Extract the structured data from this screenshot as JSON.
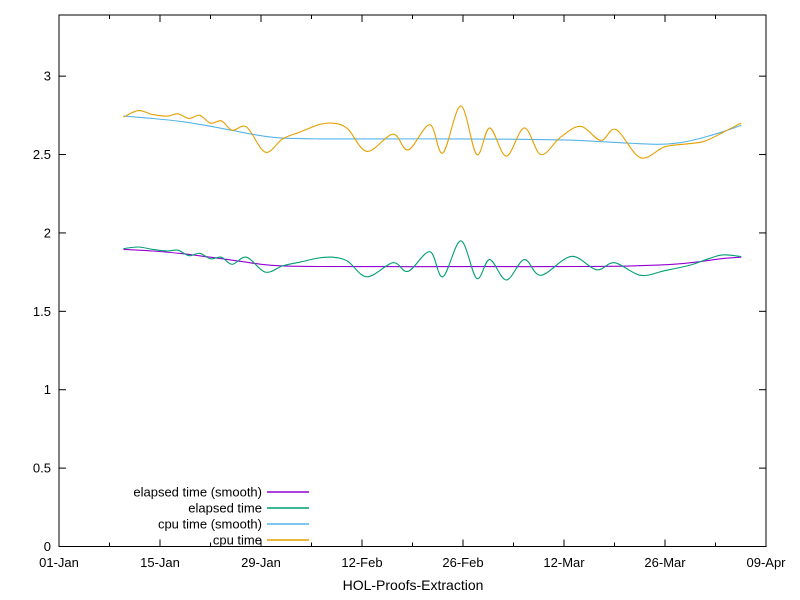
{
  "chart_data": {
    "type": "line",
    "title": "",
    "xlabel": "HOL-Proofs-Extraction",
    "ylabel": "",
    "grid": false,
    "legend_position": "inside-bottom-left",
    "x_axis": {
      "unit": "date",
      "range_days": [
        0,
        98
      ],
      "ticks_major": [
        {
          "day": 0,
          "label": "01-Jan"
        },
        {
          "day": 14,
          "label": "15-Jan"
        },
        {
          "day": 28,
          "label": "29-Jan"
        },
        {
          "day": 42,
          "label": "12-Feb"
        },
        {
          "day": 56,
          "label": "26-Feb"
        },
        {
          "day": 70,
          "label": "12-Mar"
        },
        {
          "day": 84,
          "label": "26-Mar"
        },
        {
          "day": 98,
          "label": "09-Apr"
        }
      ],
      "ticks_minor_days": [
        7,
        21,
        35,
        49,
        63,
        77,
        91
      ]
    },
    "y_axis": {
      "range": [
        0,
        3.39
      ],
      "ticks": [
        {
          "value": 0,
          "label": "0"
        },
        {
          "value": 0.5,
          "label": "0.5"
        },
        {
          "value": 1,
          "label": "1"
        },
        {
          "value": 1.5,
          "label": "1.5"
        },
        {
          "value": 2,
          "label": "2"
        },
        {
          "value": 2.5,
          "label": "2.5"
        },
        {
          "value": 3,
          "label": "3"
        }
      ]
    },
    "series": [
      {
        "name": "elapsed time (smooth)",
        "color": "#9400D3",
        "points": [
          [
            9,
            1.895
          ],
          [
            13,
            1.885
          ],
          [
            17,
            1.868
          ],
          [
            21,
            1.845
          ],
          [
            25,
            1.82
          ],
          [
            28,
            1.8
          ],
          [
            31,
            1.79
          ],
          [
            36,
            1.786
          ],
          [
            45,
            1.785
          ],
          [
            55,
            1.785
          ],
          [
            62,
            1.785
          ],
          [
            67,
            1.785
          ],
          [
            72,
            1.786
          ],
          [
            78,
            1.788
          ],
          [
            83,
            1.795
          ],
          [
            86,
            1.803
          ],
          [
            89,
            1.818
          ],
          [
            92,
            1.836
          ],
          [
            94.5,
            1.845
          ]
        ]
      },
      {
        "name": "elapsed time",
        "color": "#009E73",
        "points": [
          [
            9,
            1.9
          ],
          [
            11,
            1.91
          ],
          [
            13,
            1.895
          ],
          [
            15,
            1.885
          ],
          [
            16.5,
            1.89
          ],
          [
            18,
            1.855
          ],
          [
            19.5,
            1.87
          ],
          [
            21,
            1.835
          ],
          [
            22.5,
            1.845
          ],
          [
            24,
            1.8
          ],
          [
            26,
            1.845
          ],
          [
            28.6,
            1.75
          ],
          [
            31,
            1.79
          ],
          [
            33.5,
            1.815
          ],
          [
            36,
            1.84
          ],
          [
            38,
            1.845
          ],
          [
            40,
            1.82
          ],
          [
            42.7,
            1.72
          ],
          [
            46.3,
            1.81
          ],
          [
            48.4,
            1.755
          ],
          [
            51.4,
            1.88
          ],
          [
            53.2,
            1.72
          ],
          [
            55.7,
            1.95
          ],
          [
            57.9,
            1.71
          ],
          [
            59.7,
            1.83
          ],
          [
            62,
            1.7
          ],
          [
            64.5,
            1.83
          ],
          [
            66.8,
            1.73
          ],
          [
            71,
            1.85
          ],
          [
            74.5,
            1.765
          ],
          [
            77,
            1.81
          ],
          [
            80.6,
            1.73
          ],
          [
            84,
            1.76
          ],
          [
            87.5,
            1.795
          ],
          [
            90,
            1.835
          ],
          [
            92,
            1.86
          ],
          [
            94.5,
            1.85
          ]
        ]
      },
      {
        "name": "cpu time (smooth)",
        "color": "#56B4E9",
        "points": [
          [
            9,
            2.745
          ],
          [
            13,
            2.73
          ],
          [
            17,
            2.71
          ],
          [
            21,
            2.68
          ],
          [
            25,
            2.645
          ],
          [
            28,
            2.62
          ],
          [
            31,
            2.605
          ],
          [
            36,
            2.6
          ],
          [
            45,
            2.6
          ],
          [
            55,
            2.6
          ],
          [
            62,
            2.598
          ],
          [
            67,
            2.595
          ],
          [
            72,
            2.59
          ],
          [
            78,
            2.575
          ],
          [
            83,
            2.565
          ],
          [
            86,
            2.575
          ],
          [
            89,
            2.605
          ],
          [
            92,
            2.645
          ],
          [
            94.5,
            2.685
          ]
        ]
      },
      {
        "name": "cpu time",
        "color": "#E69F00",
        "points": [
          [
            9,
            2.74
          ],
          [
            11,
            2.78
          ],
          [
            13,
            2.755
          ],
          [
            15,
            2.745
          ],
          [
            16.5,
            2.76
          ],
          [
            18,
            2.73
          ],
          [
            19.5,
            2.75
          ],
          [
            21,
            2.7
          ],
          [
            22.5,
            2.715
          ],
          [
            24,
            2.655
          ],
          [
            26,
            2.675
          ],
          [
            28.6,
            2.515
          ],
          [
            31,
            2.6
          ],
          [
            33.5,
            2.645
          ],
          [
            36,
            2.69
          ],
          [
            38,
            2.7
          ],
          [
            40,
            2.665
          ],
          [
            42.7,
            2.52
          ],
          [
            46.3,
            2.63
          ],
          [
            48.4,
            2.53
          ],
          [
            51.4,
            2.69
          ],
          [
            53.2,
            2.51
          ],
          [
            55.7,
            2.81
          ],
          [
            57.9,
            2.5
          ],
          [
            59.7,
            2.67
          ],
          [
            62,
            2.49
          ],
          [
            64.5,
            2.67
          ],
          [
            66.8,
            2.5
          ],
          [
            69.5,
            2.61
          ],
          [
            72.3,
            2.68
          ],
          [
            75.1,
            2.59
          ],
          [
            77.2,
            2.66
          ],
          [
            80.6,
            2.48
          ],
          [
            84,
            2.55
          ],
          [
            87.5,
            2.57
          ],
          [
            89.5,
            2.585
          ],
          [
            92,
            2.64
          ],
          [
            94.5,
            2.7
          ]
        ]
      }
    ],
    "legend": [
      "elapsed time (smooth)",
      "elapsed time",
      "cpu time (smooth)",
      "cpu time"
    ]
  },
  "colors": {
    "background": "#ffffff",
    "axis": "#000000",
    "text": "#000000"
  }
}
